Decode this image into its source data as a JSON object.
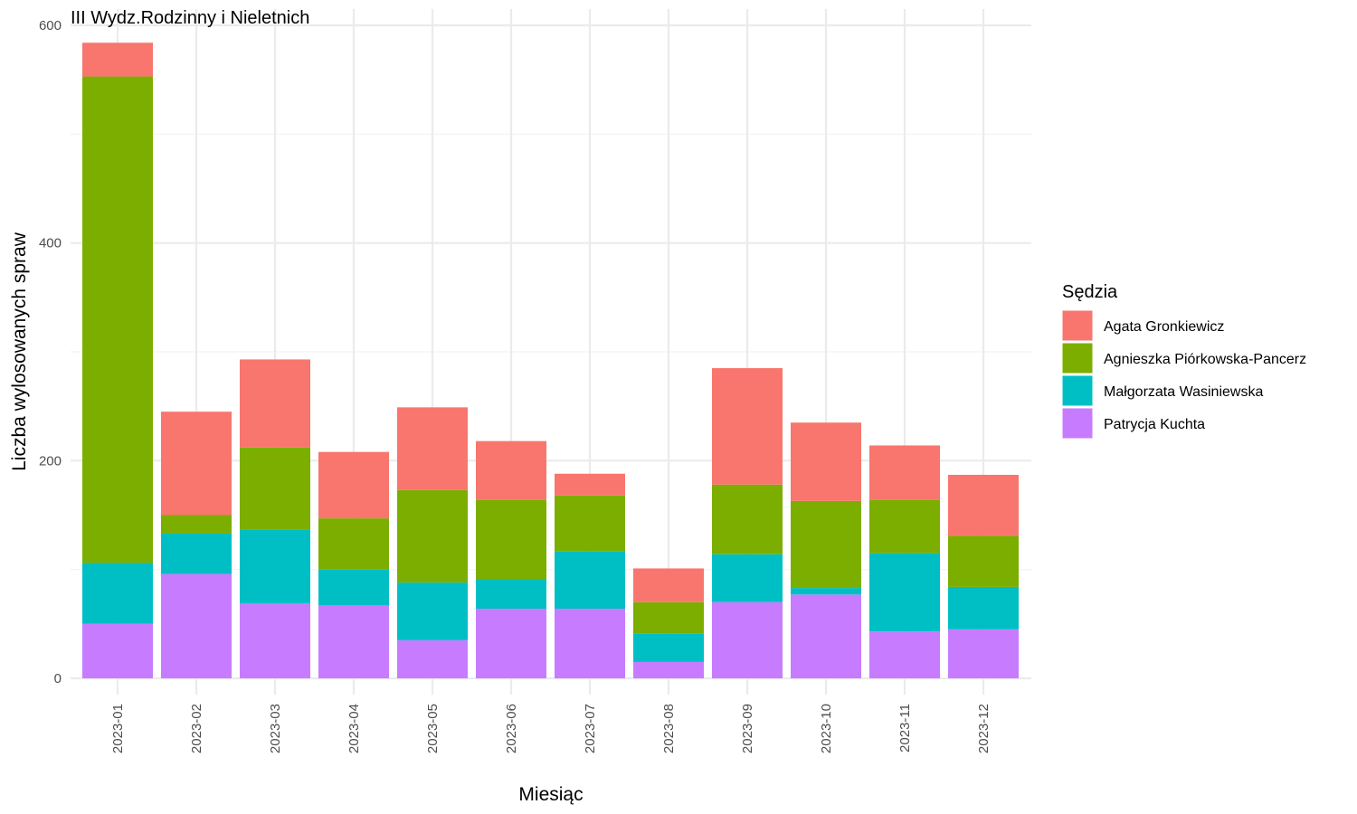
{
  "chart_data": {
    "type": "bar",
    "stacked": true,
    "title": "III Wydz.Rodzinny i Nieletnich",
    "xlabel": "Miesiąc",
    "ylabel": "Liczba wylosowanych spraw",
    "ylim": [
      0,
      600
    ],
    "yticks": [
      "0",
      "200",
      "400",
      "600"
    ],
    "grid": true,
    "legend_title": "Sędzia",
    "legend_position": "right",
    "categories": [
      "2023-01",
      "2023-02",
      "2023-03",
      "2023-04",
      "2023-05",
      "2023-06",
      "2023-07",
      "2023-08",
      "2023-09",
      "2023-10",
      "2023-11",
      "2023-12"
    ],
    "series": [
      {
        "name": "Agata Gronkiewicz",
        "color": "#F8766D",
        "values": [
          31,
          95,
          81,
          61,
          76,
          54,
          20,
          31,
          107,
          72,
          50,
          56
        ]
      },
      {
        "name": "Agnieszka Piórkowska-Pancerz",
        "color": "#7CAE00",
        "values": [
          447,
          17,
          75,
          47,
          85,
          73,
          51,
          29,
          64,
          80,
          49,
          47
        ]
      },
      {
        "name": "Małgorzata Wasiniewska",
        "color": "#00BFC4",
        "values": [
          56,
          37,
          68,
          33,
          53,
          27,
          53,
          26,
          44,
          6,
          72,
          39
        ]
      },
      {
        "name": "Patrycja Kuchta",
        "color": "#C77CFF",
        "values": [
          50,
          96,
          69,
          67,
          35,
          64,
          64,
          15,
          70,
          77,
          43,
          45
        ]
      }
    ],
    "stack_order_bottom_to_top": [
      "Patrycja Kuchta",
      "Małgorzata Wasiniewska",
      "Agnieszka Piórkowska-Pancerz",
      "Agata Gronkiewicz"
    ]
  }
}
